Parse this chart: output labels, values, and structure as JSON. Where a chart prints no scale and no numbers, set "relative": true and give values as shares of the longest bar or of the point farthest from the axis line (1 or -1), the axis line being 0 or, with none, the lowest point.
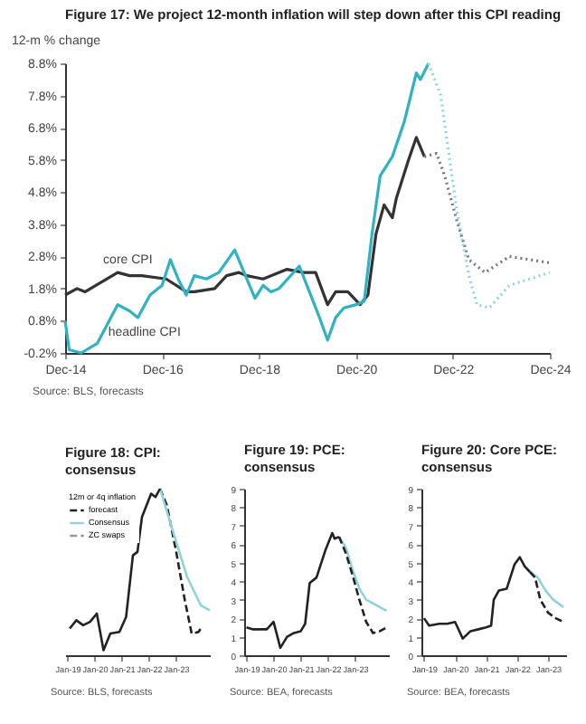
{
  "chart_data": [
    {
      "type": "line",
      "title": "Figure 17: We project 12-month inflation will step down after this CPI reading",
      "ylabel": "12-m % change",
      "xlim": [
        "2014-12",
        "2024-12"
      ],
      "xticks": [
        {
          "value": "2014-12",
          "label": "Dec-14"
        },
        {
          "value": "2016-12",
          "label": "Dec-16"
        },
        {
          "value": "2018-12",
          "label": "Dec-18"
        },
        {
          "value": "2020-12",
          "label": "Dec-20"
        },
        {
          "value": "2022-12",
          "label": "Dec-22"
        },
        {
          "value": "2024-12",
          "label": "Dec-24"
        }
      ],
      "ylim": [
        -0.2,
        8.8
      ],
      "yticks": [
        {
          "value": -0.2,
          "label": "-0.2%"
        },
        {
          "value": 0.8,
          "label": "0.8%"
        },
        {
          "value": 1.8,
          "label": "1.8%"
        },
        {
          "value": 2.8,
          "label": "2.8%"
        },
        {
          "value": 3.8,
          "label": "3.8%"
        },
        {
          "value": 4.8,
          "label": "4.8%"
        },
        {
          "value": 5.8,
          "label": "5.8%"
        },
        {
          "value": 6.8,
          "label": "6.8%"
        },
        {
          "value": 7.8,
          "label": "7.8%"
        },
        {
          "value": 8.8,
          "label": "8.8%"
        }
      ],
      "annotations": [
        "Source: BLS, forecasts"
      ],
      "series": [
        {
          "name": "core CPI",
          "color": "#333333",
          "x": [
            "2014-12",
            "2015-03",
            "2015-05",
            "2016-01",
            "2016-04",
            "2016-07",
            "2017-01",
            "2017-06",
            "2017-08",
            "2018-01",
            "2018-04",
            "2018-07",
            "2018-09",
            "2019-01",
            "2019-07",
            "2019-11",
            "2020-02",
            "2020-05",
            "2020-07",
            "2020-10",
            "2021-01",
            "2021-03",
            "2021-05",
            "2021-07",
            "2021-09",
            "2021-10",
            "2022-01",
            "2022-03",
            "2022-05"
          ],
          "values": [
            1.6,
            1.8,
            1.7,
            2.3,
            2.2,
            2.2,
            2.1,
            1.7,
            1.7,
            1.8,
            2.2,
            2.3,
            2.2,
            2.1,
            2.4,
            2.3,
            2.3,
            1.3,
            1.7,
            1.7,
            1.3,
            1.6,
            3.5,
            4.4,
            4.0,
            4.6,
            5.8,
            6.5,
            5.9
          ]
        },
        {
          "name": "headline CPI",
          "color": "#2fb3c3",
          "x": [
            "2014-12",
            "2015-01",
            "2015-04",
            "2015-08",
            "2016-01",
            "2016-04",
            "2016-06",
            "2016-09",
            "2016-12",
            "2017-02",
            "2017-04",
            "2017-06",
            "2017-08",
            "2017-11",
            "2018-02",
            "2018-06",
            "2018-08",
            "2018-11",
            "2019-01",
            "2019-03",
            "2019-05",
            "2019-10",
            "2020-03",
            "2020-05",
            "2020-07",
            "2020-09",
            "2020-12",
            "2021-02",
            "2021-04",
            "2021-06",
            "2021-09",
            "2021-12",
            "2022-03",
            "2022-04",
            "2022-06"
          ],
          "values": [
            0.8,
            -0.1,
            -0.2,
            0.1,
            1.3,
            1.1,
            0.9,
            1.6,
            1.9,
            2.7,
            2.1,
            1.6,
            2.2,
            2.1,
            2.3,
            3.0,
            2.4,
            1.5,
            1.9,
            1.7,
            1.8,
            2.5,
            0.9,
            0.2,
            0.9,
            1.2,
            1.3,
            1.4,
            3.5,
            5.3,
            5.9,
            7.0,
            8.5,
            8.3,
            8.8
          ]
        },
        {
          "color": "#777777",
          "line_style": "dotted",
          "x": [
            "2022-05",
            "2022-08",
            "2022-10",
            "2023-01",
            "2023-04",
            "2023-08",
            "2024-02",
            "2024-12"
          ],
          "values": [
            5.9,
            6.0,
            5.3,
            3.9,
            2.7,
            2.3,
            2.8,
            2.6
          ]
        },
        {
          "color": "#8fd6de",
          "line_style": "dotted",
          "x": [
            "2022-06",
            "2022-09",
            "2022-11",
            "2023-01",
            "2023-04",
            "2023-06",
            "2023-09",
            "2024-02",
            "2024-12"
          ],
          "values": [
            8.8,
            7.8,
            6.0,
            4.2,
            2.2,
            1.3,
            1.2,
            1.9,
            2.3
          ]
        }
      ]
    },
    {
      "type": "line",
      "title": "Figure 18: CPI: consensus",
      "relative": true,
      "legend": "top left",
      "legend_title": "12m or 4q inflation",
      "xlim": [
        "2018-12",
        "2024-04"
      ],
      "xticks": [
        {
          "value": "2019-01",
          "label": "Jan-19"
        },
        {
          "value": "2020-01",
          "label": "Jan-20"
        },
        {
          "value": "2021-01",
          "label": "Jan-21"
        },
        {
          "value": "2022-01",
          "label": "Jan-22"
        },
        {
          "value": "2023-01",
          "label": "Jan-23"
        }
      ],
      "annotations": [
        "Source: BLS, forecasts"
      ],
      "series": [
        {
          "name": "forecast",
          "color": "#222222",
          "line_style": "dashed",
          "x": [
            "2022-06",
            "2022-09",
            "2023-01",
            "2023-05",
            "2023-08",
            "2023-11",
            "2023-12"
          ],
          "values": [
            1,
            0.9,
            0.63,
            0.33,
            0.13,
            0.14,
            0.16
          ]
        },
        {
          "name": "Consensus",
          "color": "#8fd3dc",
          "x": [
            "2022-06",
            "2022-12",
            "2023-06",
            "2023-12",
            "2024-04"
          ],
          "values": [
            1,
            0.73,
            0.47,
            0.3,
            0.27
          ]
        },
        {
          "name": "ZC swaps",
          "color": "#999999",
          "line_style": "dashed"
        },
        {
          "color": "#222222",
          "x": [
            "2019-02",
            "2019-05",
            "2019-08",
            "2019-11",
            "2020-02",
            "2020-05",
            "2020-08",
            "2020-12",
            "2021-03",
            "2021-06",
            "2021-08",
            "2021-10",
            "2022-02",
            "2022-04",
            "2022-06"
          ],
          "values": [
            0.16,
            0.21,
            0.18,
            0.2,
            0.25,
            0.03,
            0.13,
            0.14,
            0.23,
            0.6,
            0.62,
            0.83,
            0.97,
            0.95,
            1
          ]
        }
      ]
    },
    {
      "type": "line",
      "title": "Figure 19: PCE: consensus",
      "xlim": [
        "2018-12",
        "2024-04"
      ],
      "xticks": [
        {
          "value": "2019-01",
          "label": "Jan-19"
        },
        {
          "value": "2020-01",
          "label": "Jan-20"
        },
        {
          "value": "2021-01",
          "label": "Jan-21"
        },
        {
          "value": "2022-01",
          "label": "Jan-22"
        },
        {
          "value": "2023-01",
          "label": "Jan-23"
        }
      ],
      "ylim": [
        0,
        9
      ],
      "yticks": [
        0,
        1,
        2,
        3,
        4,
        5,
        6,
        7,
        8,
        9
      ],
      "annotations": [
        "Source: BEA, forecasts"
      ],
      "series": [
        {
          "color": "#8fd3dc",
          "x": [
            "2022-06",
            "2022-09",
            "2022-12",
            "2023-03",
            "2023-06",
            "2023-12",
            "2024-03"
          ],
          "values": [
            6.4,
            5.8,
            4.6,
            3.6,
            3.0,
            2.6,
            2.4
          ]
        },
        {
          "color": "#222222",
          "x": [
            "2019-01",
            "2019-04",
            "2019-07",
            "2019-10",
            "2020-01",
            "2020-04",
            "2020-07",
            "2020-10",
            "2021-01",
            "2021-03",
            "2021-05",
            "2021-08",
            "2021-12",
            "2022-03",
            "2022-04",
            "2022-06"
          ],
          "values": [
            1.5,
            1.4,
            1.4,
            1.4,
            1.8,
            0.4,
            1.0,
            1.2,
            1.3,
            1.7,
            3.9,
            4.2,
            5.7,
            6.6,
            6.3,
            6.4
          ]
        },
        {
          "color": "#222222",
          "line_style": "dashed",
          "x": [
            "2022-06",
            "2022-09",
            "2022-12",
            "2023-03",
            "2023-06",
            "2023-09",
            "2023-12",
            "2024-03"
          ],
          "values": [
            6.4,
            5.5,
            4.3,
            3.0,
            1.8,
            1.2,
            1.3,
            1.5
          ]
        }
      ]
    },
    {
      "type": "line",
      "title": "Figure 20: Core PCE: consensus",
      "xlim": [
        "2018-12",
        "2023-08"
      ],
      "xticks": [
        {
          "value": "2019-01",
          "label": "Jan-19"
        },
        {
          "value": "2020-01",
          "label": "Jan-20"
        },
        {
          "value": "2021-01",
          "label": "Jan-21"
        },
        {
          "value": "2022-01",
          "label": "Jan-22"
        },
        {
          "value": "2023-01",
          "label": "Jan-23"
        }
      ],
      "ylim": [
        0,
        9
      ],
      "yticks": [
        0,
        1,
        2,
        3,
        4,
        5,
        6,
        7,
        8,
        9
      ],
      "annotations": [
        "Source: BEA, forecasts"
      ],
      "series": [
        {
          "color": "#8fd3dc",
          "x": [
            "2022-06",
            "2022-09",
            "2022-12",
            "2023-03",
            "2023-07"
          ],
          "values": [
            4.5,
            4.2,
            3.5,
            3.0,
            2.6
          ]
        },
        {
          "color": "#222222",
          "x": [
            "2019-01",
            "2019-03",
            "2019-07",
            "2019-10",
            "2020-01",
            "2020-04",
            "2020-07",
            "2020-10",
            "2021-01",
            "2021-03",
            "2021-04",
            "2021-06",
            "2021-09",
            "2021-12",
            "2022-02",
            "2022-04",
            "2022-06"
          ],
          "values": [
            2.0,
            1.6,
            1.7,
            1.7,
            1.8,
            0.9,
            1.3,
            1.4,
            1.5,
            1.6,
            3.0,
            3.5,
            3.6,
            4.9,
            5.3,
            4.8,
            4.5
          ]
        },
        {
          "color": "#222222",
          "line_style": "dashed",
          "x": [
            "2022-06",
            "2022-08",
            "2022-10",
            "2023-01",
            "2023-04",
            "2023-07"
          ],
          "values": [
            4.5,
            4.2,
            3.0,
            2.3,
            2.0,
            1.8
          ]
        }
      ]
    }
  ]
}
